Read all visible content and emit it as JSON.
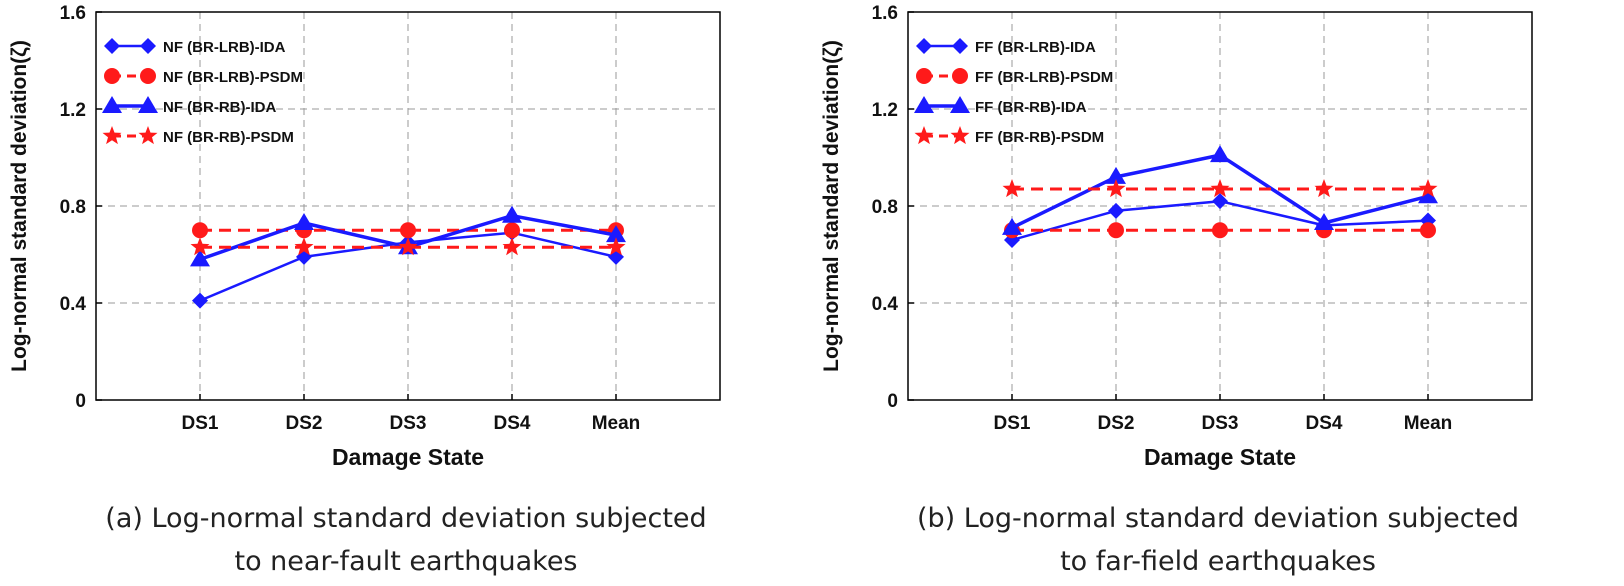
{
  "chart_data": [
    {
      "id": "near-fault",
      "type": "line",
      "caption_line1": "(a) Log-normal standard deviation subjected",
      "caption_line2": "to near-fault earthquakes",
      "xlabel": "Damage State",
      "ylabel": "Log-normal standard deviation(ζ)",
      "categories": [
        "DS1",
        "DS2",
        "DS3",
        "DS4",
        "Mean"
      ],
      "ylim": [
        0,
        1.6
      ],
      "yticks": [
        0,
        0.4,
        0.8,
        1.2,
        1.6
      ],
      "ytick_labels": [
        "0",
        "0.4",
        "0.8",
        "1.2",
        "1.6"
      ],
      "grid": true,
      "legend_position": "top-left",
      "series": [
        {
          "name": "NF (BR-LRB)-IDA",
          "marker": "diamond",
          "color": "#1a1aff",
          "dashed": false,
          "line_width": 2.5,
          "values": [
            0.41,
            0.59,
            0.65,
            0.69,
            0.59
          ]
        },
        {
          "name": "NF (BR-LRB)-PSDM",
          "marker": "circle",
          "color": "#ff1a1a",
          "dashed": true,
          "line_width": 3,
          "values": [
            0.7,
            0.7,
            0.7,
            0.7,
            0.7
          ]
        },
        {
          "name": "NF (BR-RB)-IDA",
          "marker": "triangle",
          "color": "#1a1aff",
          "dashed": false,
          "line_width": 3.5,
          "values": [
            0.58,
            0.73,
            0.63,
            0.76,
            0.68
          ]
        },
        {
          "name": "NF (BR-RB)-PSDM",
          "marker": "star",
          "color": "#ff1a1a",
          "dashed": true,
          "line_width": 3,
          "values": [
            0.63,
            0.63,
            0.63,
            0.63,
            0.63
          ]
        }
      ]
    },
    {
      "id": "far-field",
      "type": "line",
      "caption_line1": "(b) Log-normal standard deviation subjected",
      "caption_line2": "to far-field earthquakes",
      "xlabel": "Damage State",
      "ylabel": "Log-normal standard deviation(ζ)",
      "categories": [
        "DS1",
        "DS2",
        "DS3",
        "DS4",
        "Mean"
      ],
      "ylim": [
        0,
        1.6
      ],
      "yticks": [
        0,
        0.4,
        0.8,
        1.2,
        1.6
      ],
      "ytick_labels": [
        "0",
        "0.4",
        "0.8",
        "1.2",
        "1.6"
      ],
      "grid": true,
      "legend_position": "top-left",
      "series": [
        {
          "name": "FF (BR-LRB)-IDA",
          "marker": "diamond",
          "color": "#1a1aff",
          "dashed": false,
          "line_width": 2.5,
          "values": [
            0.66,
            0.78,
            0.82,
            0.72,
            0.74
          ]
        },
        {
          "name": "FF (BR-LRB)-PSDM",
          "marker": "circle",
          "color": "#ff1a1a",
          "dashed": true,
          "line_width": 3,
          "values": [
            0.7,
            0.7,
            0.7,
            0.7,
            0.7
          ]
        },
        {
          "name": "FF (BR-RB)-IDA",
          "marker": "triangle",
          "color": "#1a1aff",
          "dashed": false,
          "line_width": 3.5,
          "values": [
            0.71,
            0.92,
            1.01,
            0.73,
            0.84
          ]
        },
        {
          "name": "FF (BR-RB)-PSDM",
          "marker": "star",
          "color": "#ff1a1a",
          "dashed": true,
          "line_width": 3,
          "values": [
            0.87,
            0.87,
            0.87,
            0.87,
            0.87
          ]
        }
      ]
    }
  ]
}
